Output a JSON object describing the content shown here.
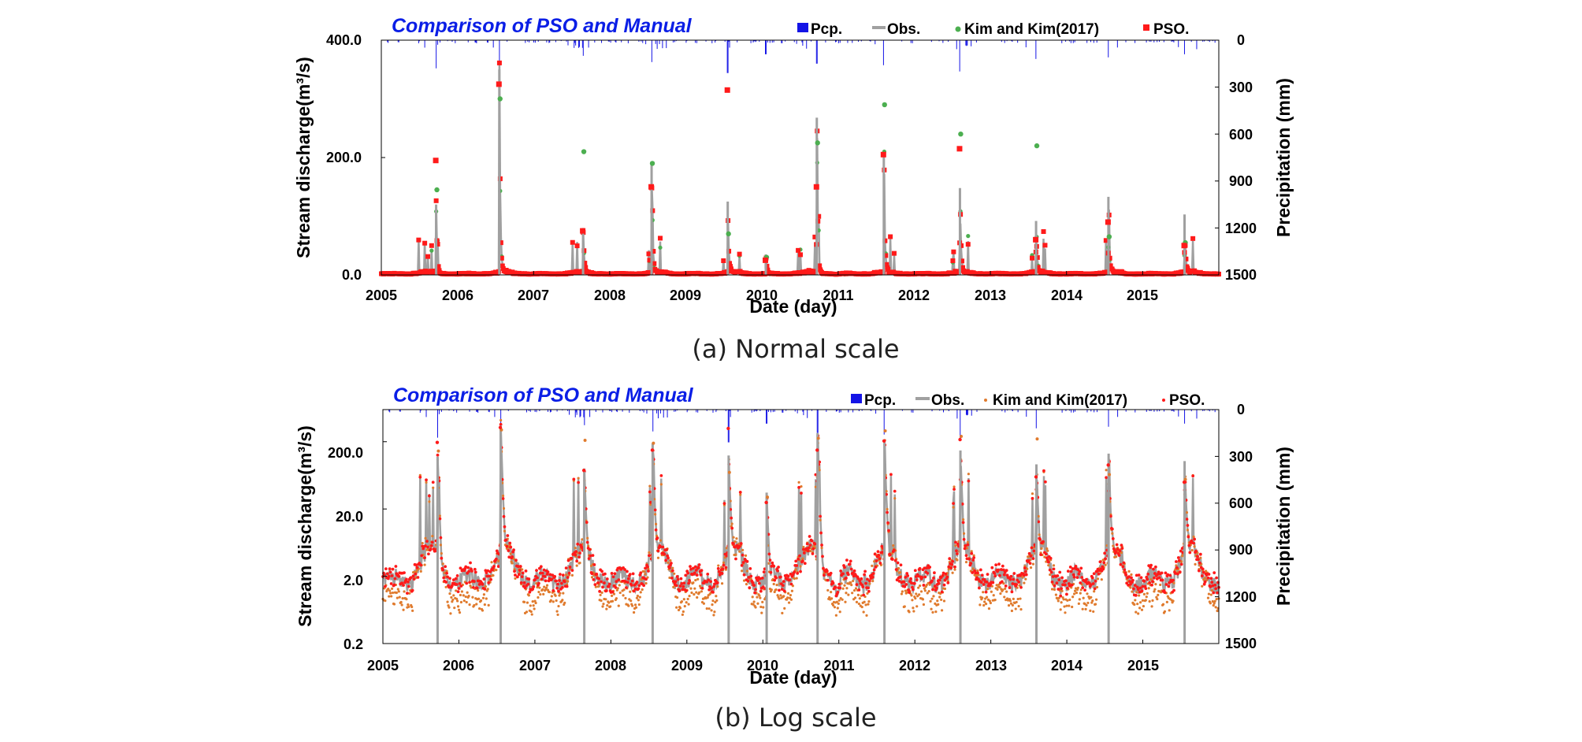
{
  "chart_data": [
    {
      "id": "normal",
      "type": "line",
      "title": "Comparison of PSO and Manual",
      "caption": "(a) Normal scale",
      "xlabel": "Date (day)",
      "ylabel": "Stream discharge(m³/s)",
      "y2label": "Precipitation (mm)",
      "yscale": "linear",
      "ylim": [
        0,
        400
      ],
      "yticks": [
        "0.0",
        "200.0",
        "400.0"
      ],
      "y2lim": [
        0,
        1500
      ],
      "y2reversed": true,
      "y2ticks": [
        "0",
        "300",
        "600",
        "900",
        "1200",
        "1500"
      ],
      "xlim": [
        2005,
        2016
      ],
      "xticks": [
        "2005",
        "2006",
        "2007",
        "2008",
        "2009",
        "2010",
        "2011",
        "2012",
        "2013",
        "2014",
        "2015"
      ],
      "legend": [
        {
          "label": "Pcp.",
          "color": "#1414e6",
          "kind": "bar"
        },
        {
          "label": "Obs.",
          "color": "#a0a0a0",
          "kind": "line"
        },
        {
          "label": "Kim and Kim(2017)",
          "color": "#4caf50",
          "kind": "circle"
        },
        {
          "label": "PSO.",
          "color": "#ff1a1a",
          "kind": "square"
        }
      ],
      "legend_position": "top"
    },
    {
      "id": "log",
      "type": "line",
      "title": "Comparison of PSO and Manual",
      "caption": "(b) Log scale",
      "xlabel": "Date (day)",
      "ylabel": "Stream discharge(m³/s)",
      "y2label": "Precipitation (mm)",
      "yscale": "log",
      "ylim": [
        0.2,
        600
      ],
      "yticks": [
        "0.2",
        "2.0",
        "20.0",
        "200.0"
      ],
      "y2lim": [
        0,
        1500
      ],
      "y2reversed": true,
      "y2ticks": [
        "0",
        "300",
        "600",
        "900",
        "1200",
        "1500"
      ],
      "xlim": [
        2005,
        2016
      ],
      "xticks": [
        "2005",
        "2006",
        "2007",
        "2008",
        "2009",
        "2010",
        "2011",
        "2012",
        "2013",
        "2014",
        "2015"
      ],
      "legend": [
        {
          "label": "Pcp.",
          "color": "#1414e6",
          "kind": "bar"
        },
        {
          "label": "Obs.",
          "color": "#a0a0a0",
          "kind": "line"
        },
        {
          "label": "Kim and Kim(2017)",
          "color": "#e07b2e",
          "kind": "dot"
        },
        {
          "label": "PSO.",
          "color": "#ff1a1a",
          "kind": "dot"
        }
      ],
      "legend_position": "top"
    }
  ],
  "events": {
    "years": [
      2005,
      2006,
      2007,
      2008,
      2009,
      2010,
      2011,
      2012,
      2013,
      2014,
      2015
    ],
    "obs_peaks": [
      120,
      350,
      80,
      190,
      125,
      35,
      268,
      205,
      148,
      92,
      133,
      103
    ],
    "peak_dates": [
      2005.72,
      2006.55,
      2007.65,
      2008.55,
      2009.55,
      2010.05,
      2010.72,
      2011.6,
      2012.6,
      2013.6,
      2014.55,
      2015.55
    ],
    "kim_peaks": [
      145,
      300,
      210,
      190,
      70,
      30,
      225,
      290,
      240,
      220,
      65,
      55
    ],
    "pso_peaks": [
      195,
      325,
      75,
      150,
      315,
      25,
      150,
      205,
      215,
      60,
      90,
      50
    ],
    "pcp_peaks_mm": [
      180,
      200,
      100,
      140,
      210,
      90,
      150,
      160,
      200,
      120,
      110,
      90
    ]
  },
  "colors": {
    "obs": "#a0a0a0",
    "pso": "#ff1a1a",
    "kim_normal": "#4caf50",
    "kim_log": "#e07b2e",
    "pcp": "#1414e6",
    "title": "#0a1ee6"
  }
}
